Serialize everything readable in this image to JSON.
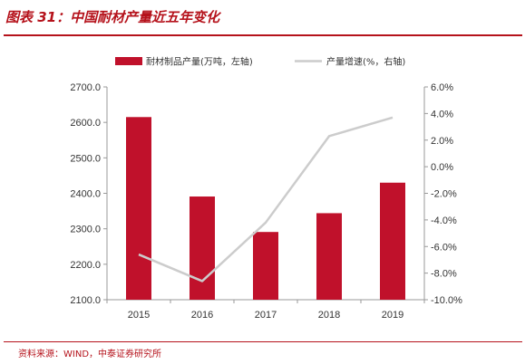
{
  "header": {
    "title": "图表 31：中国耐材产量近五年变化"
  },
  "footer": {
    "source": "资料来源：WIND，中泰证券研究所"
  },
  "colors": {
    "accent": "#b5121b",
    "bar": "#c0112b",
    "line": "#cccccc",
    "axis": "#999999"
  },
  "chart_data": {
    "type": "bar",
    "categories": [
      "2015",
      "2016",
      "2017",
      "2018",
      "2019"
    ],
    "series": [
      {
        "name": "耐材制品产量(万吨，左轴)",
        "type": "bar",
        "axis": "left",
        "values": [
          2615,
          2391,
          2291,
          2344,
          2430
        ]
      },
      {
        "name": "产量增速(%，右轴)",
        "type": "line",
        "axis": "right",
        "values": [
          -6.6,
          -8.6,
          -4.2,
          2.3,
          3.7
        ]
      }
    ],
    "y_left": {
      "lim": [
        2100,
        2700
      ],
      "ticks": [
        "2100.0",
        "2200.0",
        "2300.0",
        "2400.0",
        "2500.0",
        "2600.0",
        "2700.0"
      ]
    },
    "y_right": {
      "lim": [
        -10,
        6
      ],
      "ticks": [
        "-10.0%",
        "-8.0%",
        "-6.0%",
        "-4.0%",
        "-2.0%",
        "0.0%",
        "2.0%",
        "4.0%",
        "6.0%"
      ]
    },
    "legend_position": "top",
    "grid": false
  }
}
